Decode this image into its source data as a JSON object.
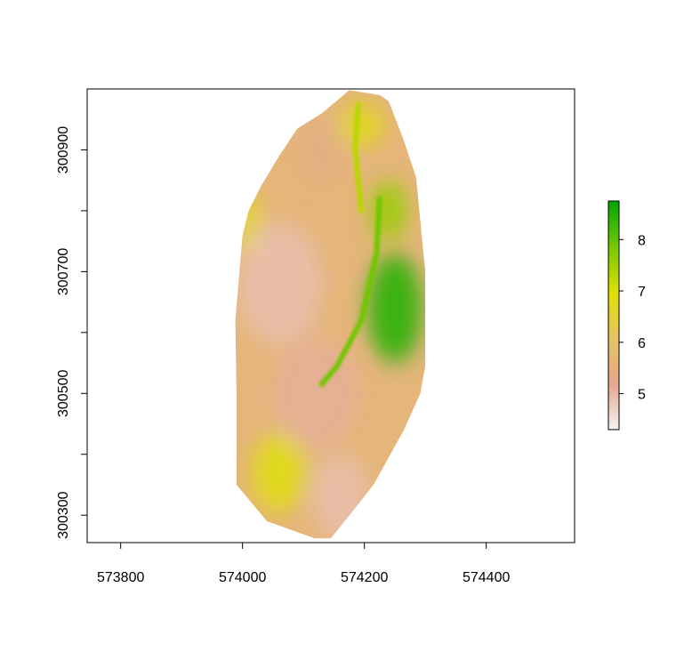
{
  "chart_data": {
    "type": "heatmap",
    "title": "",
    "xlabel": "",
    "ylabel": "",
    "xlim": [
      573745,
      574545
    ],
    "ylim": [
      300255,
      301000
    ],
    "x_ticks": [
      573800,
      574000,
      574200,
      574400
    ],
    "x_tick_labels": [
      "573800",
      "574000",
      "574200",
      "574400"
    ],
    "y_ticks": [
      300300,
      300400,
      300500,
      300600,
      300700,
      300800,
      300900
    ],
    "y_tick_labels": [
      "300300",
      "",
      "300500",
      "",
      "300700",
      "",
      "300900"
    ],
    "grid": false,
    "legend": {
      "position": "right",
      "range": [
        4.3,
        8.75
      ],
      "ticks": [
        5,
        6,
        7,
        8
      ],
      "tick_labels": [
        "5",
        "6",
        "7",
        "8"
      ],
      "colors": [
        "#F2F2F2",
        "#E4A88E",
        "#E6C463",
        "#E0E000",
        "#74C800",
        "#00A600"
      ]
    },
    "raster_boundary": [
      [
        574130,
        300960
      ],
      [
        574175,
        300998
      ],
      [
        574225,
        300990
      ],
      [
        574240,
        300980
      ],
      [
        574265,
        300915
      ],
      [
        574285,
        300855
      ],
      [
        574300,
        300700
      ],
      [
        574300,
        300545
      ],
      [
        574292,
        300500
      ],
      [
        574265,
        300440
      ],
      [
        574215,
        300350
      ],
      [
        574190,
        300318
      ],
      [
        574145,
        300262
      ],
      [
        574118,
        300262
      ],
      [
        574040,
        300290
      ],
      [
        573990,
        300350
      ],
      [
        573990,
        300500
      ],
      [
        573988,
        300620
      ],
      [
        574000,
        300760
      ],
      [
        574010,
        300800
      ],
      [
        574030,
        300840
      ],
      [
        574060,
        300890
      ],
      [
        574090,
        300935
      ]
    ],
    "raster_zones": [
      {
        "kind": "ellipse",
        "center": [
          574250,
          300640
        ],
        "radius": [
          45,
          90
        ],
        "value": 8.5
      },
      {
        "kind": "ellipse",
        "center": [
          574240,
          300800
        ],
        "radius": [
          30,
          50
        ],
        "value": 7.6
      },
      {
        "kind": "ellipse",
        "center": [
          574195,
          300940
        ],
        "radius": [
          35,
          35
        ],
        "value": 6.8
      },
      {
        "kind": "ellipse",
        "center": [
          574010,
          300770
        ],
        "radius": [
          18,
          60
        ],
        "value": 6.9
      },
      {
        "kind": "ellipse",
        "center": [
          574060,
          300370
        ],
        "radius": [
          45,
          65
        ],
        "value": 6.9
      },
      {
        "kind": "ellipse",
        "center": [
          574060,
          300680
        ],
        "radius": [
          70,
          100
        ],
        "value": 4.9
      },
      {
        "kind": "ellipse",
        "center": [
          574120,
          300500
        ],
        "radius": [
          70,
          90
        ],
        "value": 5.1
      },
      {
        "kind": "ellipse",
        "center": [
          574160,
          300330
        ],
        "radius": [
          45,
          70
        ],
        "value": 4.9
      },
      {
        "kind": "ellipse",
        "center": [
          574130,
          300900
        ],
        "radius": [
          40,
          50
        ],
        "value": 5.4
      }
    ],
    "raster_features": [
      {
        "kind": "line",
        "points": [
          [
            574225,
            300820
          ],
          [
            574220,
            300730
          ],
          [
            574195,
            300620
          ],
          [
            574155,
            300545
          ],
          [
            574130,
            300515
          ]
        ],
        "value": 7.9
      },
      {
        "kind": "line",
        "points": [
          [
            574190,
            300975
          ],
          [
            574185,
            300900
          ],
          [
            574195,
            300800
          ]
        ],
        "value": 7.3
      }
    ]
  }
}
